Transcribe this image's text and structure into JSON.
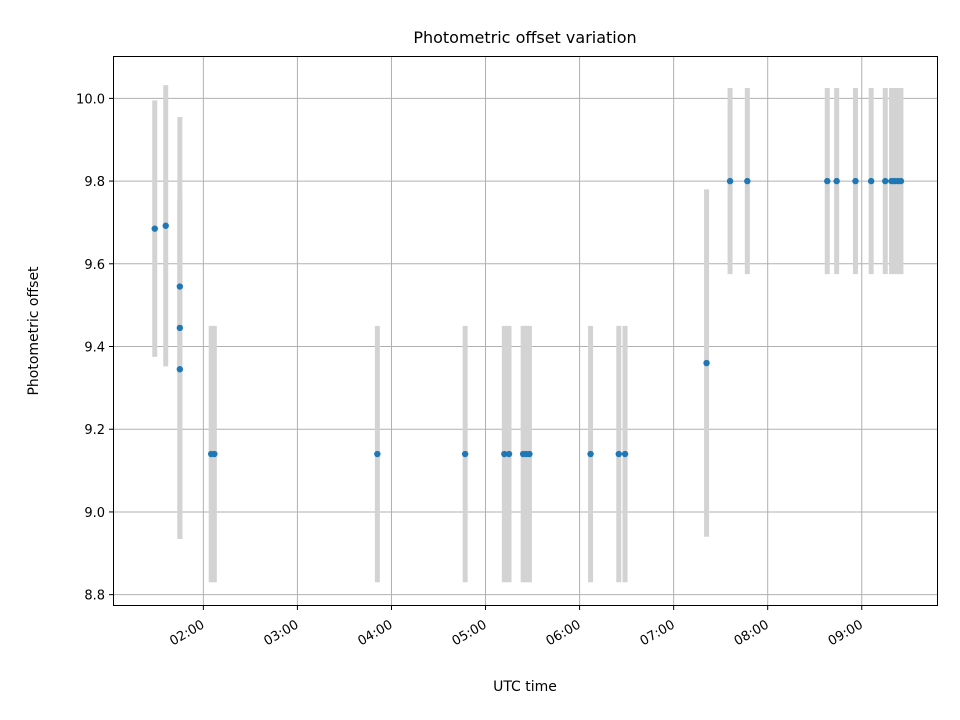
{
  "chart_data": {
    "type": "scatter",
    "title": "Photometric offset variation",
    "xlabel": "UTC time",
    "ylabel": "Photometric offset",
    "x_ticks": [
      "02:00",
      "03:00",
      "04:00",
      "05:00",
      "06:00",
      "07:00",
      "08:00",
      "09:00"
    ],
    "y_ticks": [
      "8.8",
      "9.0",
      "9.2",
      "9.4",
      "9.6",
      "9.8",
      "10.0"
    ],
    "xlim": [
      "01:03",
      "09:48"
    ],
    "ylim": [
      8.775,
      10.1
    ],
    "grid": true,
    "colors": {
      "points": "#1f77b4",
      "errorbars": "#d3d3d3",
      "grid": "#b0b0b0"
    },
    "points": [
      {
        "x": "01:29",
        "y": 9.685,
        "err": 0.31
      },
      {
        "x": "01:36",
        "y": 9.692,
        "err": 0.34
      },
      {
        "x": "01:45",
        "y": 9.545,
        "err": 0.21
      },
      {
        "x": "01:45",
        "y": 9.445,
        "err": 0.51
      },
      {
        "x": "01:45",
        "y": 9.345,
        "err": 0.41
      },
      {
        "x": "02:05",
        "y": 9.14,
        "err": 0.31
      },
      {
        "x": "02:07",
        "y": 9.14,
        "err": 0.31
      },
      {
        "x": "03:51",
        "y": 9.14,
        "err": 0.31
      },
      {
        "x": "04:47",
        "y": 9.14,
        "err": 0.31
      },
      {
        "x": "05:12",
        "y": 9.14,
        "err": 0.31
      },
      {
        "x": "05:15",
        "y": 9.14,
        "err": 0.31
      },
      {
        "x": "05:24",
        "y": 9.14,
        "err": 0.31
      },
      {
        "x": "05:26",
        "y": 9.14,
        "err": 0.31
      },
      {
        "x": "05:28",
        "y": 9.14,
        "err": 0.31
      },
      {
        "x": "06:07",
        "y": 9.14,
        "err": 0.31
      },
      {
        "x": "06:25",
        "y": 9.14,
        "err": 0.31
      },
      {
        "x": "06:29",
        "y": 9.14,
        "err": 0.31
      },
      {
        "x": "07:21",
        "y": 9.36,
        "err": 0.42
      },
      {
        "x": "07:36",
        "y": 9.8,
        "err": 0.225
      },
      {
        "x": "07:47",
        "y": 9.8,
        "err": 0.225
      },
      {
        "x": "08:38",
        "y": 9.8,
        "err": 0.225
      },
      {
        "x": "08:44",
        "y": 9.8,
        "err": 0.225
      },
      {
        "x": "08:56",
        "y": 9.8,
        "err": 0.225
      },
      {
        "x": "09:06",
        "y": 9.8,
        "err": 0.225
      },
      {
        "x": "09:15",
        "y": 9.8,
        "err": 0.225
      },
      {
        "x": "09:19",
        "y": 9.8,
        "err": 0.225
      },
      {
        "x": "09:21",
        "y": 9.8,
        "err": 0.225
      },
      {
        "x": "09:23",
        "y": 9.8,
        "err": 0.225
      },
      {
        "x": "09:25",
        "y": 9.8,
        "err": 0.225
      }
    ]
  }
}
